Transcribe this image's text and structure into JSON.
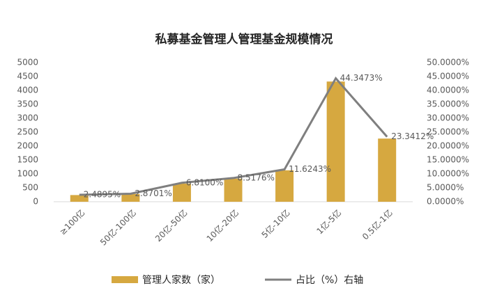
{
  "chart_data": {
    "type": "bar",
    "title": "私募基金管理人管理基金规模情况",
    "categories": [
      "≥100亿",
      "50亿-100亿",
      "20亿-50亿",
      "10亿-20亿",
      "5亿-10亿",
      "1亿-5亿",
      "0.5亿-1亿"
    ],
    "series": [
      {
        "name": "管理人家数（家）",
        "type": "bar",
        "color": "#D6A840",
        "values": [
          240,
          280,
          650,
          830,
          1130,
          4320,
          2270
        ]
      },
      {
        "name": "占比（%）右轴",
        "type": "line",
        "axis": "y2",
        "color": "#7F7F7F",
        "values": [
          2.4895,
          2.8701,
          6.81,
          8.5176,
          11.6243,
          44.3473,
          23.3412
        ],
        "value_labels": [
          "2.4895%",
          "2.8701%",
          "6.8100%",
          "8.5176%",
          "11.6243%",
          "44.3473%",
          "23.3412%"
        ]
      }
    ],
    "ylim": [
      0,
      5000
    ],
    "yticks": [
      0,
      500,
      1000,
      1500,
      2000,
      2500,
      3000,
      3500,
      4000,
      4500,
      5000
    ],
    "y2lim": [
      0,
      50
    ],
    "y2ticks": [
      {
        "value": 0,
        "label": "0.0000%"
      },
      {
        "value": 5,
        "label": "5.0000%"
      },
      {
        "value": 10,
        "label": "10.0000%"
      },
      {
        "value": 15,
        "label": "15.0000%"
      },
      {
        "value": 20,
        "label": "20.0000%"
      },
      {
        "value": 25,
        "label": "25.0000%"
      },
      {
        "value": 30,
        "label": "30.0000%"
      },
      {
        "value": 35,
        "label": "35.0000%"
      },
      {
        "value": 40,
        "label": "40.0000%"
      },
      {
        "value": 45,
        "label": "45.0000%"
      },
      {
        "value": 50,
        "label": "50.0000%"
      }
    ],
    "grid": false,
    "legend": "bottom"
  }
}
